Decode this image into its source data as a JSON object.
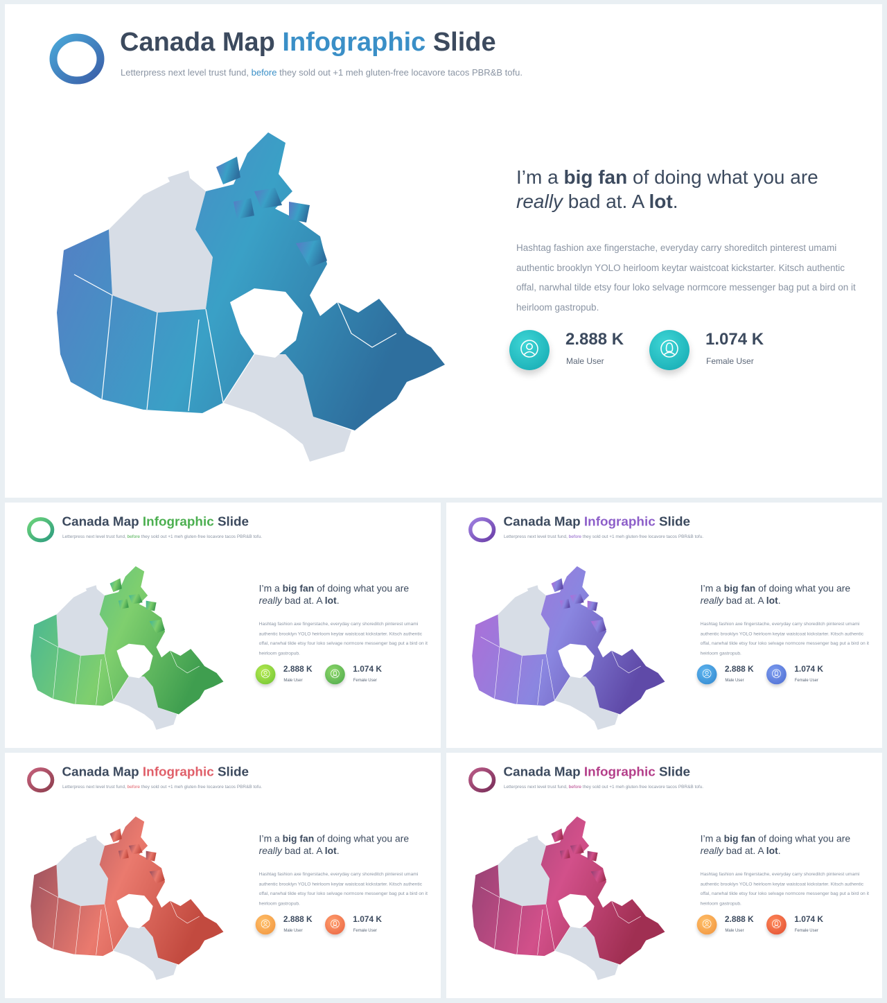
{
  "slide": {
    "title_part1": "Canada Map ",
    "title_highlight": "Infographic",
    "title_part3": " Slide",
    "subtitle_part1": "Letterpress next level trust fund, ",
    "subtitle_highlight": "before",
    "subtitle_part3": " they sold out +1 meh gluten-free locavore tacos PBR&B tofu.",
    "quote_part1": "I’m a ",
    "quote_bold1": "big fan",
    "quote_part2": " of doing what you are ",
    "quote_italic": "really",
    "quote_part3": " bad at. A ",
    "quote_bold2": "lot",
    "quote_end": ".",
    "body": "Hashtag fashion axe fingerstache, everyday carry shoreditch pinterest umami authentic brooklyn YOLO heirloom keytar waistcoat kickstarter. Kitsch authentic offal, narwhal tilde etsy four loko selvage normcore messenger bag put a bird on it heirloom gastropub.",
    "male_value": "2.888 K",
    "male_label": "Male User",
    "female_value": "1.074 K",
    "female_label": "Female User"
  },
  "themes": [
    {
      "name": "blue",
      "accent": "#3a8fc7",
      "logo_from": "#4aa7d8",
      "logo_to": "#3b5fa8",
      "map_from": "#5a78c4",
      "map_mid": "#3aa0c6",
      "map_to": "#2e6f9e",
      "male_from": "#3fd6d6",
      "male_to": "#12a7b0",
      "female_from": "#3fd6d6",
      "female_to": "#12a7b0"
    },
    {
      "name": "green",
      "accent": "#4caf50",
      "logo_from": "#6cd37a",
      "logo_to": "#2e9d7f",
      "map_from": "#3fb39a",
      "map_mid": "#7fcf6e",
      "map_to": "#3f9e4f",
      "male_from": "#b6ea52",
      "male_to": "#6cc230",
      "female_from": "#8ed86a",
      "female_to": "#4aa64a"
    },
    {
      "name": "purple",
      "accent": "#8d5fc9",
      "logo_from": "#9e7fe0",
      "logo_to": "#6b3fa8",
      "map_from": "#b36ad6",
      "map_mid": "#8a86e0",
      "map_to": "#5f4aa8",
      "male_from": "#5fb6f0",
      "male_to": "#2f84cc",
      "female_from": "#7e9ef0",
      "female_to": "#4a6ad0"
    },
    {
      "name": "coral",
      "accent": "#e0606a",
      "logo_from": "#c4607a",
      "logo_to": "#8e3f4f",
      "map_from": "#8d4a5c",
      "map_mid": "#ea7a6e",
      "map_to": "#c24a3f",
      "male_from": "#ffc06a",
      "male_to": "#f0913a",
      "female_from": "#ffa06e",
      "female_to": "#e9603f"
    },
    {
      "name": "magenta",
      "accent": "#b43f8a",
      "logo_from": "#b95a86",
      "logo_to": "#7a2f5a",
      "map_from": "#8a3f70",
      "map_mid": "#d2508a",
      "map_to": "#a02f52",
      "male_from": "#ffc06a",
      "male_to": "#f0913a",
      "female_from": "#ff8a5a",
      "female_to": "#e04a2f"
    }
  ]
}
